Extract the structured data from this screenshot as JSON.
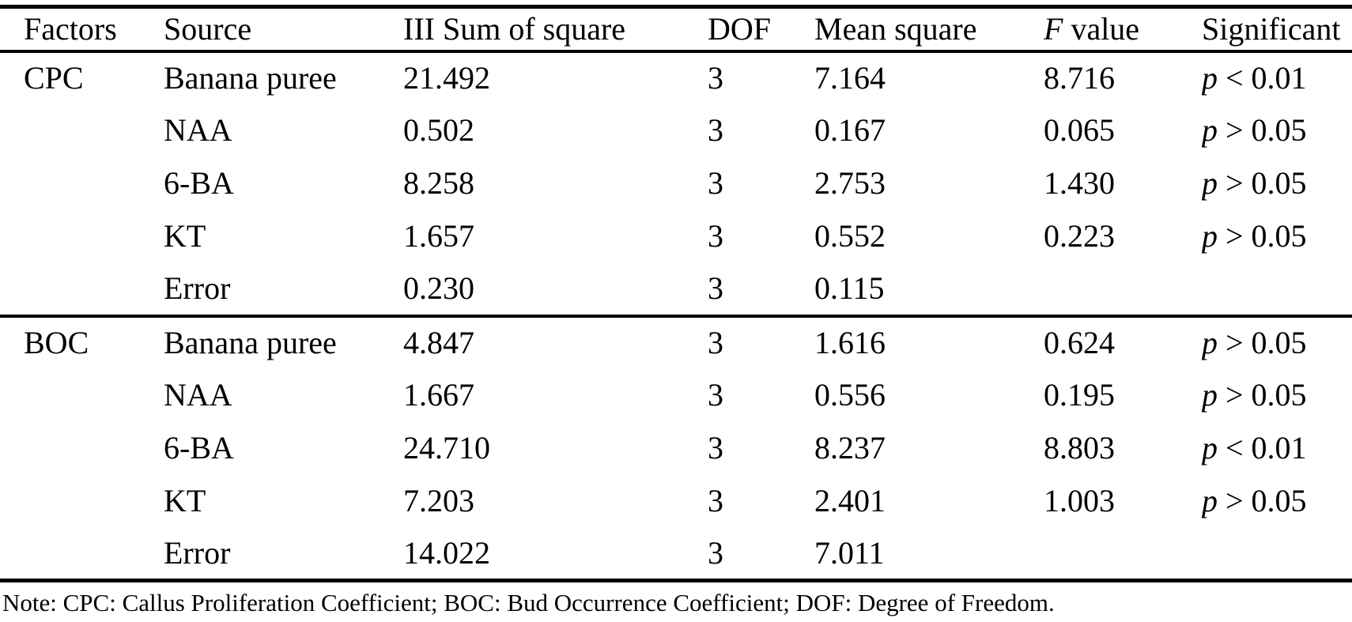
{
  "table": {
    "headers": [
      {
        "text": "Factors"
      },
      {
        "text": "Source"
      },
      {
        "text": "III Sum of square"
      },
      {
        "text": "DOF"
      },
      {
        "text": "Mean square"
      },
      {
        "italic": "F",
        "text": " value"
      },
      {
        "text": "Significant"
      }
    ],
    "sections": [
      {
        "factor": "CPC",
        "rows": [
          {
            "source": "Banana puree",
            "sum_of_square": "21.492",
            "dof": "3",
            "mean_square": "7.164",
            "f_value": "8.716",
            "significant": {
              "italic": "p",
              "text": " < 0.01"
            }
          },
          {
            "source": "NAA",
            "sum_of_square": "0.502",
            "dof": "3",
            "mean_square": "0.167",
            "f_value": "0.065",
            "significant": {
              "italic": "p",
              "text": " > 0.05"
            }
          },
          {
            "source": "6-BA",
            "sum_of_square": "8.258",
            "dof": "3",
            "mean_square": "2.753",
            "f_value": "1.430",
            "significant": {
              "italic": "p",
              "text": " > 0.05"
            }
          },
          {
            "source": "KT",
            "sum_of_square": "1.657",
            "dof": "3",
            "mean_square": "0.552",
            "f_value": "0.223",
            "significant": {
              "italic": "p",
              "text": " > 0.05"
            }
          },
          {
            "source": "Error",
            "sum_of_square": "0.230",
            "dof": "3",
            "mean_square": "0.115",
            "f_value": "",
            "significant": null
          }
        ]
      },
      {
        "factor": "BOC",
        "rows": [
          {
            "source": "Banana puree",
            "sum_of_square": "4.847",
            "dof": "3",
            "mean_square": "1.616",
            "f_value": "0.624",
            "significant": {
              "italic": "p",
              "text": " > 0.05"
            }
          },
          {
            "source": "NAA",
            "sum_of_square": "1.667",
            "dof": "3",
            "mean_square": "0.556",
            "f_value": "0.195",
            "significant": {
              "italic": "p",
              "text": " > 0.05"
            }
          },
          {
            "source": "6-BA",
            "sum_of_square": "24.710",
            "dof": "3",
            "mean_square": "8.237",
            "f_value": "8.803",
            "significant": {
              "italic": "p",
              "text": " < 0.01"
            }
          },
          {
            "source": "KT",
            "sum_of_square": "7.203",
            "dof": "3",
            "mean_square": "2.401",
            "f_value": "1.003",
            "significant": {
              "italic": "p",
              "text": " > 0.05"
            }
          },
          {
            "source": "Error",
            "sum_of_square": "14.022",
            "dof": "3",
            "mean_square": "7.011",
            "f_value": "",
            "significant": null
          }
        ]
      }
    ],
    "note": "Note: CPC: Callus Proliferation Coefficient; BOC: Bud Occurrence Coefficient; DOF: Degree of Freedom."
  }
}
